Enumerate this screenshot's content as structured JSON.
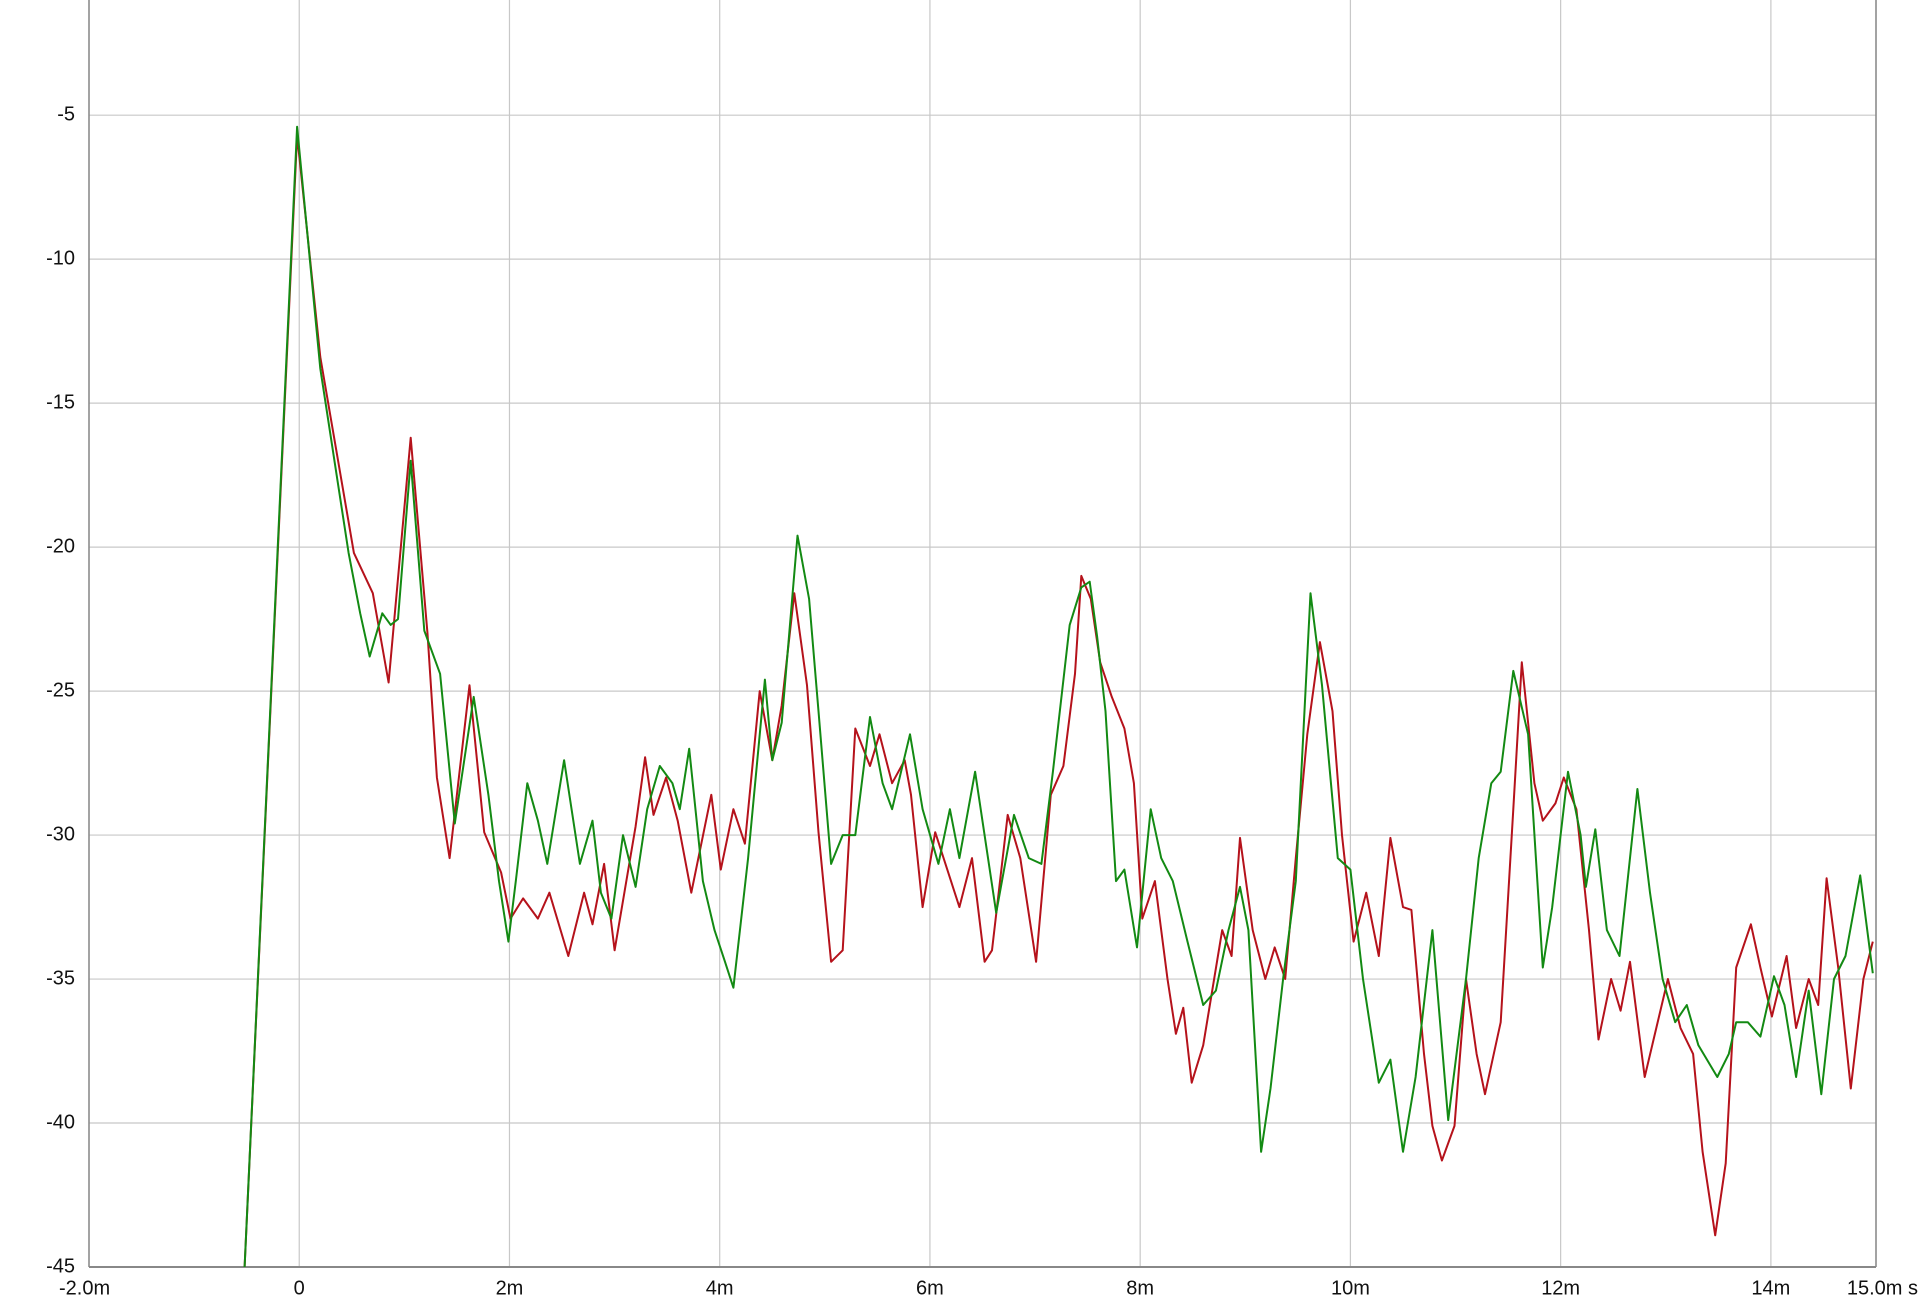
{
  "chart_data": {
    "type": "line",
    "xlim": [
      -2,
      15
    ],
    "ylim": [
      -45,
      -1
    ],
    "xticks": [
      {
        "value": -2,
        "label": "-2.0m"
      },
      0,
      {
        "value": 2,
        "label": "2m"
      },
      {
        "value": 4,
        "label": "4m"
      },
      {
        "value": 6,
        "label": "6m"
      },
      {
        "value": 8,
        "label": "8m"
      },
      {
        "value": 10,
        "label": "10m"
      },
      {
        "value": 12,
        "label": "12m"
      },
      {
        "value": 14,
        "label": "14m"
      },
      {
        "value": 15,
        "label": "15.0m s"
      }
    ],
    "yticks": [
      -5,
      -10,
      -15,
      -20,
      -25,
      -30,
      -35,
      -40,
      -45
    ],
    "grid": true,
    "series": [
      {
        "color": "#b5121b",
        "x": [
          -0.52,
          -0.02,
          0.2,
          0.52,
          0.7,
          0.85,
          1.06,
          1.22,
          1.31,
          1.43,
          1.62,
          1.76,
          1.92,
          2.01,
          2.13,
          2.27,
          2.38,
          2.56,
          2.71,
          2.79,
          2.9,
          3.0,
          3.2,
          3.29,
          3.37,
          3.49,
          3.6,
          3.73,
          3.92,
          4.01,
          4.13,
          4.24,
          4.38,
          4.5,
          4.59,
          4.71,
          4.83,
          4.94,
          5.06,
          5.17,
          5.29,
          5.43,
          5.52,
          5.64,
          5.76,
          5.82,
          5.93,
          6.05,
          6.2,
          6.28,
          6.4,
          6.52,
          6.59,
          6.74,
          6.86,
          7.01,
          7.15,
          7.27,
          7.38,
          7.44,
          7.53,
          7.62,
          7.73,
          7.85,
          7.94,
          8.02,
          8.14,
          8.26,
          8.34,
          8.41,
          8.49,
          8.6,
          8.78,
          8.87,
          8.95,
          9.07,
          9.19,
          9.28,
          9.38,
          9.48,
          9.59,
          9.71,
          9.83,
          9.92,
          10.03,
          10.15,
          10.27,
          10.38,
          10.5,
          10.58,
          10.7,
          10.78,
          10.87,
          10.99,
          11.1,
          11.2,
          11.28,
          11.43,
          11.55,
          11.63,
          11.75,
          11.83,
          11.95,
          12.03,
          12.15,
          12.27,
          12.36,
          12.48,
          12.57,
          12.66,
          12.8,
          12.91,
          13.02,
          13.14,
          13.26,
          13.35,
          13.47,
          13.57,
          13.67,
          13.81,
          13.9,
          14.01,
          14.15,
          14.24,
          14.36,
          14.45,
          14.53,
          14.64,
          14.76,
          14.88,
          14.97
        ],
        "values": [
          -45,
          -5.7,
          -13.4,
          -20.2,
          -21.6,
          -24.7,
          -16.2,
          -23,
          -28,
          -30.8,
          -24.8,
          -29.9,
          -31.3,
          -32.9,
          -32.2,
          -32.9,
          -32,
          -34.2,
          -32,
          -33.1,
          -31,
          -34,
          -29.7,
          -27.3,
          -29.3,
          -28,
          -29.5,
          -32,
          -28.6,
          -31.2,
          -29.1,
          -30.3,
          -25,
          -27.4,
          -25.5,
          -21.6,
          -24.8,
          -29.9,
          -34.4,
          -34,
          -26.3,
          -27.6,
          -26.5,
          -28.2,
          -27.4,
          -28.6,
          -32.5,
          -29.9,
          -31.6,
          -32.5,
          -30.8,
          -34.4,
          -34,
          -29.3,
          -30.8,
          -34.4,
          -28.6,
          -27.6,
          -24.4,
          -21,
          -21.8,
          -24,
          -25.2,
          -26.3,
          -28.2,
          -32.9,
          -31.6,
          -35,
          -36.9,
          -36,
          -38.6,
          -37.3,
          -33.3,
          -34.2,
          -30.1,
          -33.3,
          -35,
          -33.9,
          -35,
          -30.8,
          -26.5,
          -23.3,
          -25.7,
          -30,
          -33.7,
          -32,
          -34.2,
          -30.1,
          -32.5,
          -32.6,
          -37.6,
          -40.1,
          -41.3,
          -40.1,
          -35,
          -37.6,
          -39,
          -36.5,
          -29.1,
          -24,
          -28.2,
          -29.5,
          -28.9,
          -28,
          -29.1,
          -33.3,
          -37.1,
          -35,
          -36.1,
          -34.4,
          -38.4,
          -36.7,
          -35,
          -36.7,
          -37.6,
          -41,
          -43.9,
          -41.4,
          -34.6,
          -33.1,
          -34.6,
          -36.3,
          -34.2,
          -36.7,
          -35,
          -35.9,
          -31.5,
          -34.6,
          -38.8,
          -35,
          -33.7
        ]
      },
      {
        "color": "#138a13",
        "x": [
          -0.52,
          -0.02,
          0.2,
          0.47,
          0.58,
          0.67,
          0.79,
          0.87,
          0.94,
          1.06,
          1.19,
          1.34,
          1.48,
          1.66,
          1.8,
          1.9,
          1.99,
          2.06,
          2.17,
          2.27,
          2.36,
          2.52,
          2.67,
          2.79,
          2.87,
          2.97,
          3.08,
          3.2,
          3.31,
          3.43,
          3.55,
          3.62,
          3.71,
          3.84,
          3.95,
          4.05,
          4.13,
          4.27,
          4.43,
          4.5,
          4.59,
          4.74,
          4.85,
          4.94,
          5.06,
          5.17,
          5.29,
          5.43,
          5.55,
          5.64,
          5.81,
          5.93,
          6.08,
          6.19,
          6.28,
          6.43,
          6.63,
          6.8,
          6.94,
          7.06,
          7.17,
          7.33,
          7.44,
          7.52,
          7.59,
          7.67,
          7.77,
          7.85,
          7.97,
          8.1,
          8.2,
          8.31,
          8.45,
          8.6,
          8.72,
          8.84,
          8.95,
          9.03,
          9.15,
          9.24,
          9.36,
          9.48,
          9.62,
          9.73,
          9.88,
          10.0,
          10.12,
          10.27,
          10.38,
          10.5,
          10.62,
          10.78,
          10.93,
          11.1,
          11.22,
          11.34,
          11.43,
          11.55,
          11.69,
          11.83,
          11.92,
          12.07,
          12.19,
          12.24,
          12.33,
          12.44,
          12.56,
          12.73,
          12.85,
          12.97,
          13.09,
          13.2,
          13.31,
          13.49,
          13.6,
          13.67,
          13.78,
          13.9,
          14.03,
          14.13,
          14.24,
          14.36,
          14.48,
          14.6,
          14.71,
          14.85,
          14.97
        ],
        "values": [
          -45,
          -5.4,
          -13.8,
          -20.2,
          -22.3,
          -23.8,
          -22.3,
          -22.7,
          -22.5,
          -17,
          -22.9,
          -24.4,
          -29.6,
          -25.2,
          -28.6,
          -31.6,
          -33.7,
          -31.6,
          -28.2,
          -29.5,
          -31,
          -27.4,
          -31,
          -29.5,
          -32,
          -32.9,
          -30,
          -31.8,
          -29.1,
          -27.6,
          -28.2,
          -29.1,
          -27,
          -31.6,
          -33.3,
          -34.4,
          -35.3,
          -30.8,
          -24.6,
          -27.4,
          -26.1,
          -19.6,
          -21.8,
          -25.7,
          -31,
          -30,
          -30,
          -25.9,
          -28.2,
          -29.1,
          -26.5,
          -29.1,
          -31,
          -29.1,
          -30.8,
          -27.8,
          -32.7,
          -29.3,
          -30.8,
          -31,
          -27.8,
          -22.7,
          -21.4,
          -21.2,
          -23.1,
          -25.7,
          -31.6,
          -31.2,
          -33.9,
          -29.1,
          -30.8,
          -31.6,
          -33.7,
          -35.9,
          -35.4,
          -33.3,
          -31.8,
          -33.3,
          -41,
          -38.8,
          -35,
          -31.6,
          -21.6,
          -24.8,
          -30.8,
          -31.2,
          -35,
          -38.6,
          -37.8,
          -41,
          -38.4,
          -33.3,
          -39.9,
          -35,
          -30.8,
          -28.2,
          -27.8,
          -24.3,
          -26.5,
          -34.6,
          -32.5,
          -27.8,
          -30,
          -31.8,
          -29.8,
          -33.3,
          -34.2,
          -28.4,
          -32,
          -35,
          -36.5,
          -35.9,
          -37.3,
          -38.4,
          -37.6,
          -36.5,
          -36.5,
          -37,
          -34.9,
          -35.9,
          -38.4,
          -35.4,
          -39,
          -35,
          -34.2,
          -31.4,
          -34.8
        ]
      }
    ]
  }
}
